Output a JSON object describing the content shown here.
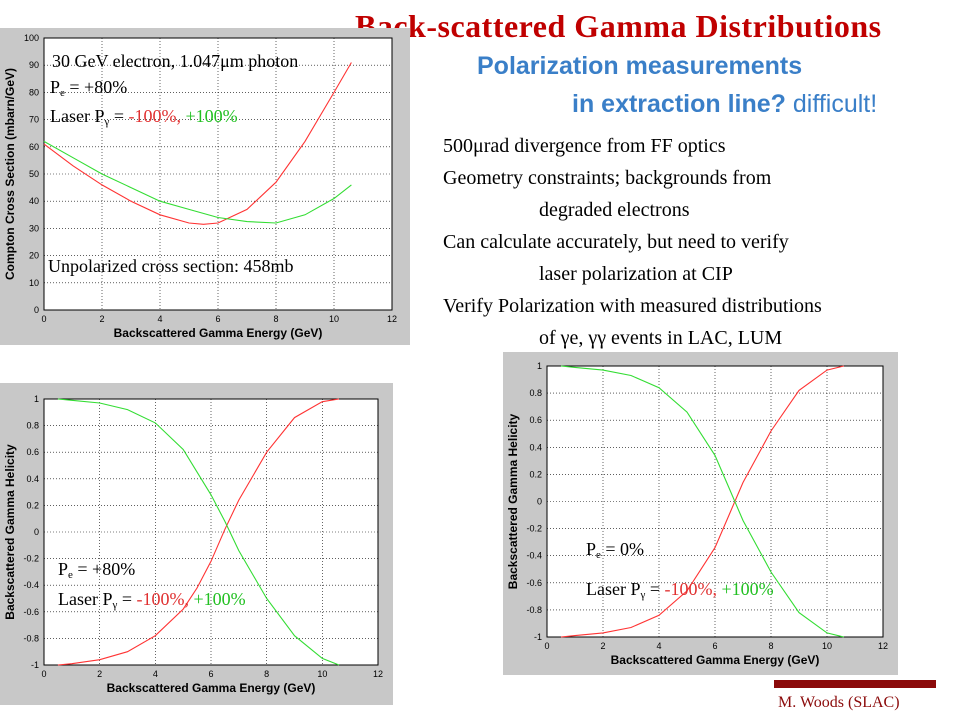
{
  "slide": {
    "title": "Back-scattered  Gamma Distributions",
    "subtitle": "Polarization measurements",
    "subtitle2_main": "in extraction line?",
    "subtitle2_tail": "difficult!",
    "bullets": [
      {
        "text": "500μrad divergence from FF optics",
        "indent": false
      },
      {
        "text": "Geometry constraints; backgrounds from",
        "indent": false
      },
      {
        "text": "degraded electrons",
        "indent": true
      },
      {
        "text": "Can calculate accurately, but need to verify",
        "indent": false
      },
      {
        "text": "laser polarization at CIP",
        "indent": true
      },
      {
        "text": "Verify Polarization with measured distributions",
        "indent": false
      },
      {
        "text": "of γe, γγ events in LAC, LUM",
        "indent": true
      }
    ],
    "credit": "M. Woods (SLAC)"
  },
  "annotations": {
    "c1_line1": "30 GeV electron, 1.047μm photon",
    "pe_prefix": "P",
    "pe_sub": "e",
    "c1_pe_value": " = +80%",
    "laser_prefix": "Laser P",
    "laser_sub": "γ",
    "laser_eq": " = ",
    "laser_red": "-100%,",
    "laser_green": " +100%",
    "c1_unpol": "Unpolarized cross section:  458mb",
    "c2_pe_value": " = +80%",
    "c3_pe_value": " = 0%"
  },
  "chart_data": [
    {
      "type": "line",
      "xlabel": "Backscattered Gamma Energy (GeV)",
      "ylabel": "Compton Cross Section (mbarn/GeV)",
      "xlim": [
        0,
        12
      ],
      "ylim": [
        0,
        100
      ],
      "xticks": [
        0,
        2,
        4,
        6,
        8,
        10,
        12
      ],
      "yticks": [
        0,
        10,
        20,
        30,
        40,
        50,
        60,
        70,
        80,
        90,
        100
      ],
      "grid": true,
      "series": [
        {
          "color": "#ff3333",
          "x": [
            0,
            1,
            2,
            3,
            4,
            5,
            5.5,
            6,
            7,
            8,
            9,
            10,
            10.6
          ],
          "y": [
            61,
            53,
            46,
            40,
            35,
            32,
            31.5,
            32,
            37,
            47,
            62,
            80,
            91
          ]
        },
        {
          "color": "#33dd33",
          "x": [
            0,
            1,
            2,
            3,
            4,
            5,
            6,
            7,
            8,
            9,
            10,
            10.6
          ],
          "y": [
            62,
            56,
            50,
            45,
            40,
            37,
            34,
            32.5,
            32,
            35,
            41,
            46
          ]
        }
      ]
    },
    {
      "type": "line",
      "xlabel": "Backscattered Gamma Energy (GeV)",
      "ylabel": "Backscattered Gamma Helicity",
      "xlim": [
        0,
        12
      ],
      "ylim": [
        -1,
        1
      ],
      "xticks": [
        0,
        2,
        4,
        6,
        8,
        10,
        12
      ],
      "yticks": [
        -1,
        -0.8,
        -0.6,
        -0.4,
        -0.2,
        0,
        0.2,
        0.4,
        0.6,
        0.8,
        1
      ],
      "grid": true,
      "series": [
        {
          "color": "#ff3333",
          "x": [
            0.5,
            1,
            2,
            3,
            4,
            5,
            5.5,
            6,
            6.5,
            7,
            8,
            9,
            10,
            10.6
          ],
          "y": [
            -1.0,
            -0.99,
            -0.96,
            -0.9,
            -0.78,
            -0.58,
            -0.42,
            -0.22,
            0.02,
            0.24,
            0.6,
            0.86,
            0.98,
            1.0
          ]
        },
        {
          "color": "#33dd33",
          "x": [
            0.5,
            1,
            2,
            3,
            4,
            5,
            6,
            6.5,
            7,
            8,
            9,
            10,
            10.6
          ],
          "y": [
            1.0,
            0.99,
            0.97,
            0.92,
            0.82,
            0.62,
            0.28,
            0.08,
            -0.14,
            -0.5,
            -0.78,
            -0.95,
            -1.0
          ]
        }
      ]
    },
    {
      "type": "line",
      "xlabel": "Backscattered Gamma Energy (GeV)",
      "ylabel": "Backscattered Gamma Helicity",
      "xlim": [
        0,
        12
      ],
      "ylim": [
        -1,
        1
      ],
      "xticks": [
        0,
        2,
        4,
        6,
        8,
        10,
        12
      ],
      "yticks": [
        -1,
        -0.8,
        -0.6,
        -0.4,
        -0.2,
        0,
        0.2,
        0.4,
        0.6,
        0.8,
        1
      ],
      "grid": true,
      "series": [
        {
          "color": "#ff3333",
          "x": [
            0.5,
            1,
            2,
            3,
            4,
            5,
            6,
            6.5,
            7,
            8,
            9,
            10,
            10.6
          ],
          "y": [
            -1.0,
            -0.99,
            -0.97,
            -0.93,
            -0.84,
            -0.66,
            -0.34,
            -0.1,
            0.14,
            0.52,
            0.82,
            0.97,
            1.0
          ]
        },
        {
          "color": "#33dd33",
          "x": [
            0.5,
            1,
            2,
            3,
            4,
            5,
            6,
            6.5,
            7,
            8,
            9,
            10,
            10.6
          ],
          "y": [
            1.0,
            0.99,
            0.97,
            0.93,
            0.84,
            0.66,
            0.34,
            0.1,
            -0.14,
            -0.52,
            -0.82,
            -0.97,
            -1.0
          ]
        }
      ]
    }
  ]
}
